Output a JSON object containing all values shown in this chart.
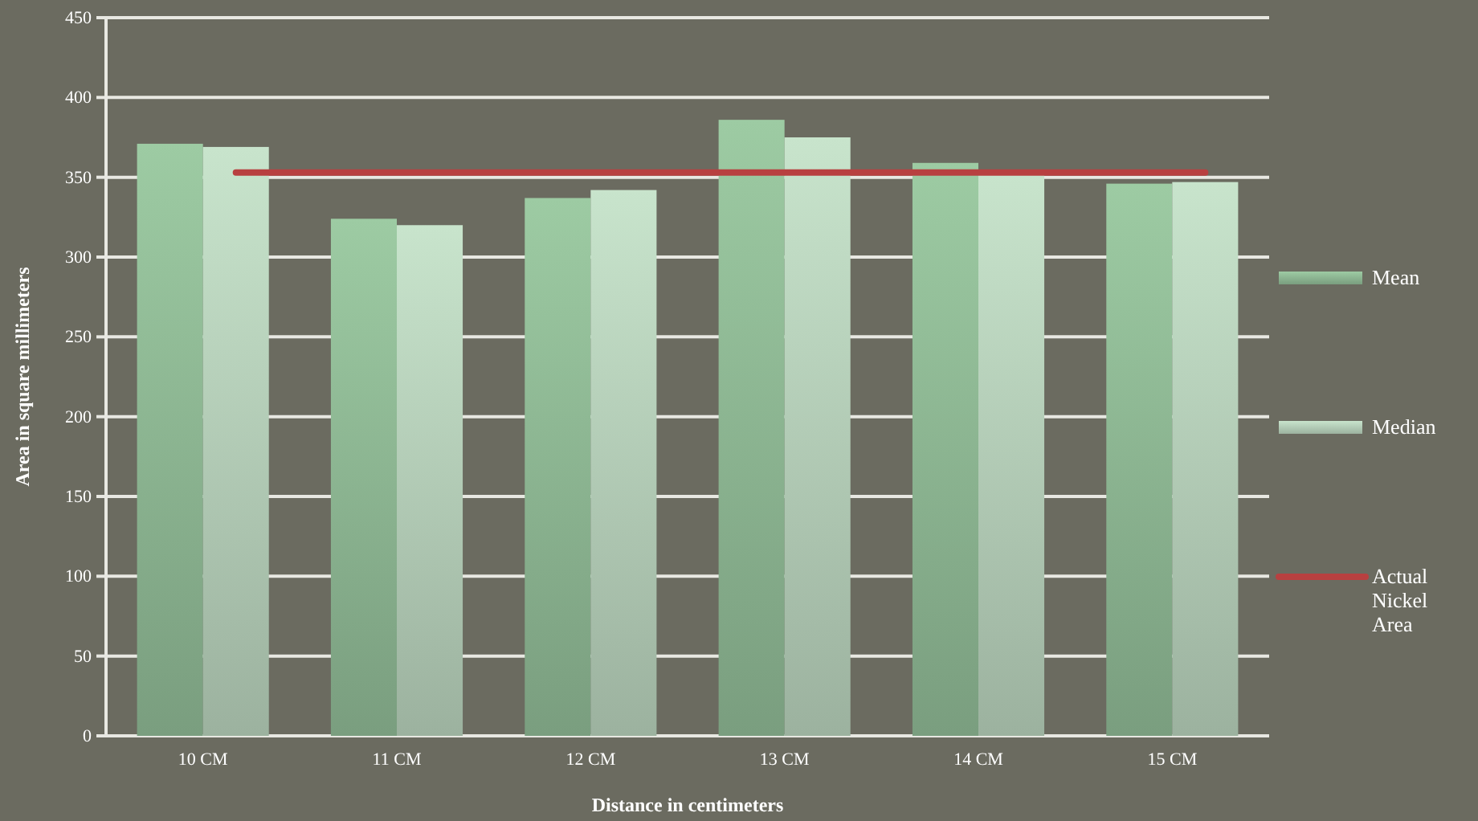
{
  "chart_data": {
    "type": "bar",
    "xlabel": "Distance in centimeters",
    "ylabel": "Area in square millimeters",
    "categories": [
      "10 CM",
      "11 CM",
      "12 CM",
      "13 CM",
      "14 CM",
      "15 CM"
    ],
    "series": [
      {
        "name": "Mean",
        "color": "#9dcba3",
        "values": [
          371,
          324,
          337,
          386,
          359,
          346
        ]
      },
      {
        "name": "Median",
        "color": "#c8e4cc",
        "values": [
          369,
          320,
          342,
          375,
          352,
          347
        ]
      },
      {
        "name": "Actual Nickel Area",
        "type": "line",
        "color": "#b84040",
        "values": [
          353,
          353,
          353,
          353,
          353,
          353
        ]
      }
    ],
    "ylim": [
      0,
      450
    ],
    "yticks": [
      0,
      50,
      100,
      150,
      200,
      250,
      300,
      350,
      400,
      450
    ],
    "grid": "y",
    "legend": "right"
  }
}
